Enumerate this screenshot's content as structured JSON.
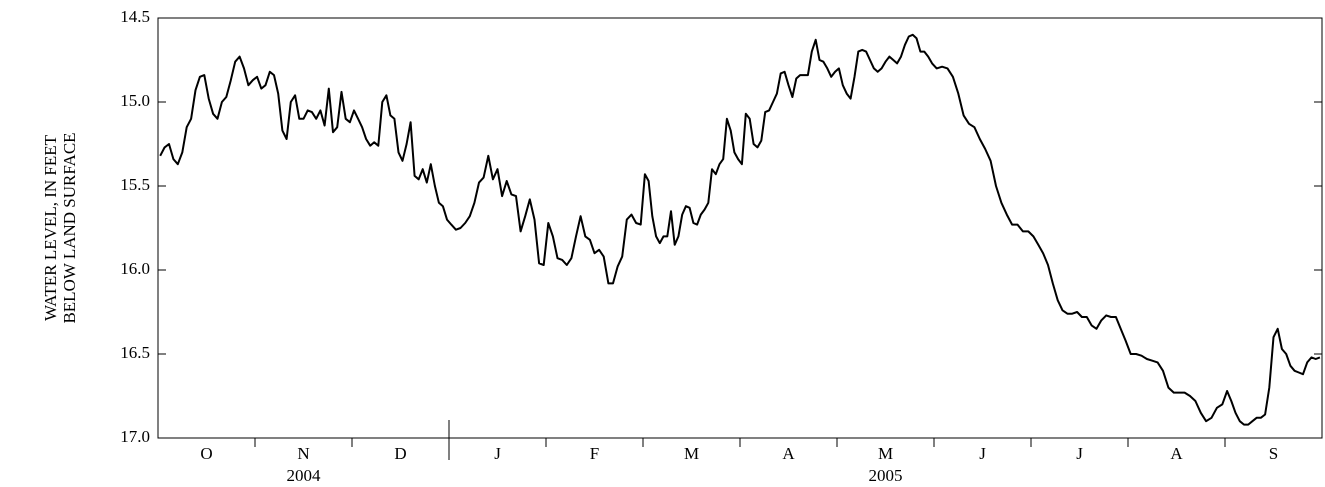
{
  "chart_data": {
    "type": "line",
    "y_label": [
      "WATER LEVEL, IN FEET",
      "BELOW LAND SURFACE"
    ],
    "categories": [
      "O",
      "N",
      "D",
      "J",
      "F",
      "M",
      "A",
      "M",
      "J",
      "J",
      "A",
      "S"
    ],
    "years": [
      "2004",
      "2005"
    ],
    "ylim": [
      14.5,
      17.0
    ],
    "y_inverted": true,
    "yticks": [
      14.5,
      {
        "value": 15.0,
        "label": "15.0"
      },
      15.5,
      {
        "value": 16.0,
        "label": "16.0"
      },
      16.5,
      {
        "value": 17.0,
        "label": "17.0"
      }
    ],
    "series": [
      {
        "color": "#000000",
        "values": [
          [
            15.32,
            15.27,
            15.25,
            15.34,
            15.37,
            15.3,
            15.15,
            15.1,
            14.93,
            14.85,
            14.84,
            14.98,
            15.07,
            15.1,
            15.0,
            14.97,
            14.87,
            14.76,
            14.73,
            14.8,
            14.9,
            14.87
          ],
          [
            14.85,
            14.92,
            14.9,
            14.82,
            14.84,
            14.95,
            15.17,
            15.22,
            15.0,
            14.96,
            15.1,
            15.1,
            15.05,
            15.06,
            15.1,
            15.05,
            15.14,
            14.92,
            15.18,
            15.15,
            14.94,
            15.1,
            15.12
          ],
          [
            15.05,
            15.1,
            15.15,
            15.22,
            15.26,
            15.24,
            15.26,
            15.0,
            14.96,
            15.08,
            15.1,
            15.3,
            15.35,
            15.25,
            15.12,
            15.44,
            15.46,
            15.4,
            15.48,
            15.37,
            15.5,
            15.6,
            15.62,
            15.7
          ],
          [
            15.73,
            15.76,
            15.75,
            15.72,
            15.68,
            15.6,
            15.48,
            15.45,
            15.32,
            15.46,
            15.4,
            15.56,
            15.47,
            15.55,
            15.56,
            15.77,
            15.68,
            15.58,
            15.7,
            15.96,
            15.97
          ],
          [
            15.72,
            15.8,
            15.93,
            15.94,
            15.97,
            15.93,
            15.8,
            15.68,
            15.8,
            15.82,
            15.9,
            15.88,
            15.92,
            16.08,
            16.08,
            15.98,
            15.92,
            15.7,
            15.67,
            15.72,
            15.73
          ],
          [
            15.43,
            15.47,
            15.68,
            15.8,
            15.84,
            15.8,
            15.8,
            15.65,
            15.85,
            15.8,
            15.67,
            15.62,
            15.63,
            15.72,
            15.73,
            15.67,
            15.64,
            15.6,
            15.4,
            15.43,
            15.37,
            15.34,
            15.1,
            15.17,
            15.3,
            15.34
          ],
          [
            15.37,
            15.07,
            15.1,
            15.25,
            15.27,
            15.23,
            15.06,
            15.05,
            15.0,
            14.95,
            14.83,
            14.82,
            14.9,
            14.97,
            14.86,
            14.84,
            14.84,
            14.84,
            14.7,
            14.63,
            14.75,
            14.76,
            14.8,
            14.85,
            14.82
          ],
          [
            14.8,
            14.9,
            14.95,
            14.98,
            14.85,
            14.7,
            14.69,
            14.7,
            14.75,
            14.8,
            14.82,
            14.8,
            14.76,
            14.73,
            14.75,
            14.77,
            14.73,
            14.66,
            14.61,
            14.6,
            14.62,
            14.7,
            14.7,
            14.73,
            14.77
          ],
          [
            14.8,
            14.79,
            14.8,
            14.85,
            14.95,
            15.08,
            15.13,
            15.15,
            15.22,
            15.28,
            15.35,
            15.5,
            15.6,
            15.67,
            15.73,
            15.73,
            15.77,
            15.77
          ],
          [
            15.8,
            15.85,
            15.9,
            15.97,
            16.08,
            16.18,
            16.24,
            16.26,
            16.26,
            16.25,
            16.28,
            16.28,
            16.33,
            16.35,
            16.3,
            16.27,
            16.28,
            16.28,
            16.35,
            16.42
          ],
          [
            16.5,
            16.5,
            16.51,
            16.53,
            16.54,
            16.55,
            16.6,
            16.7,
            16.73,
            16.73,
            16.73,
            16.75,
            16.78,
            16.85,
            16.9,
            16.88,
            16.82,
            16.8
          ],
          [
            16.72,
            16.78,
            16.85,
            16.9,
            16.92,
            16.92,
            16.9,
            16.88,
            16.88,
            16.86,
            16.7,
            16.4,
            16.35,
            16.47,
            16.5,
            16.57,
            16.6,
            16.61,
            16.62,
            16.55,
            16.52,
            16.53,
            16.52
          ]
        ]
      }
    ]
  }
}
